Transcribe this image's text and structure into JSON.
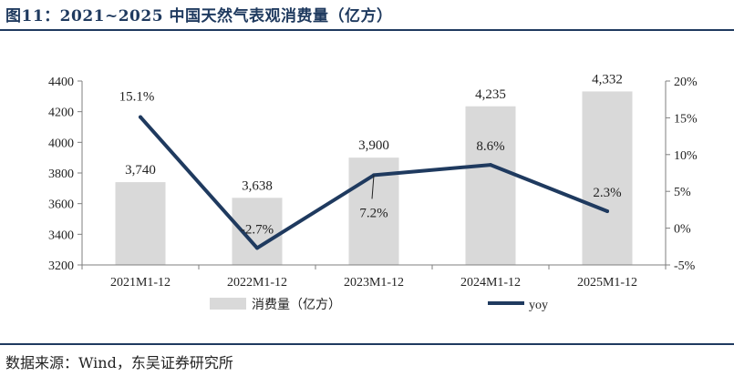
{
  "title": "图11：2021~2025 中国天然气表观消费量（亿方）",
  "source": "数据来源：Wind，东吴证券研究所",
  "colors": {
    "bar": "#d9d9d9",
    "line": "#1f3a5f",
    "rule": "#1f3a5f"
  },
  "chart_data": {
    "type": "bar",
    "categories": [
      "2021M1-12",
      "2022M1-12",
      "2023M1-12",
      "2024M1-12",
      "2025M1-12"
    ],
    "series": [
      {
        "name": "消费量（亿方）",
        "type": "bar",
        "axis": "left",
        "values": [
          3740,
          3638,
          3900,
          4235,
          4332
        ],
        "labels": [
          "3,740",
          "3,638",
          "3,900",
          "4,235",
          "4,332"
        ]
      },
      {
        "name": "yoy",
        "type": "line",
        "axis": "right",
        "values": [
          15.1,
          -2.7,
          7.2,
          8.6,
          2.3
        ],
        "labels": [
          "15.1%",
          "-2.7%",
          "7.2%",
          "8.6%",
          "2.3%"
        ]
      }
    ],
    "left_axis": {
      "ylim": [
        3200,
        4400
      ],
      "ticks": [
        "3200",
        "3400",
        "3600",
        "3800",
        "4000",
        "4200",
        "4400"
      ]
    },
    "right_axis": {
      "ylim": [
        -5,
        20
      ],
      "ticks": [
        "-5%",
        "0%",
        "5%",
        "10%",
        "15%",
        "20%"
      ]
    },
    "legend_position": "bottom",
    "grid": false
  }
}
